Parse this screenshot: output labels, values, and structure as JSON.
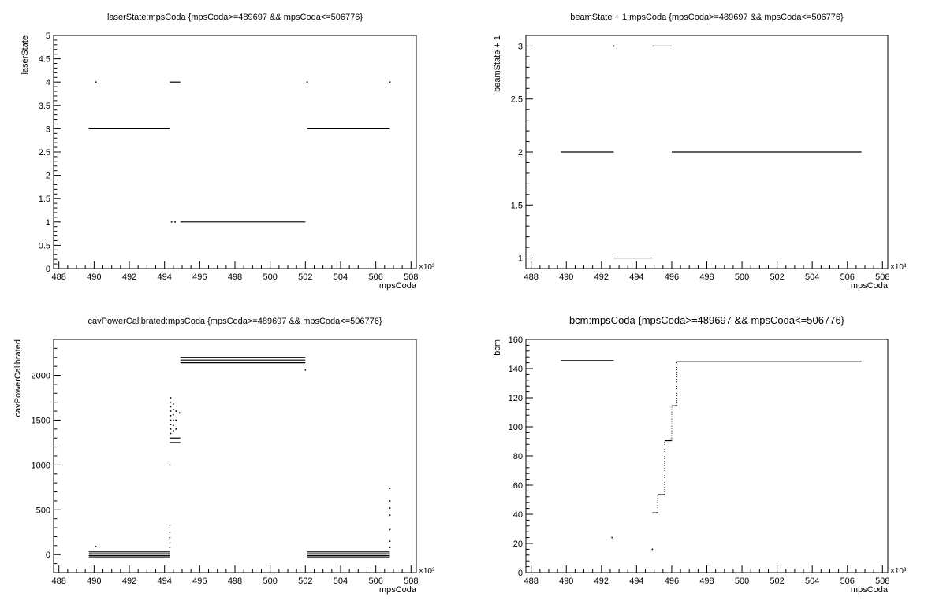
{
  "colors": {
    "background": "#ffffff",
    "axis": "#000000",
    "marker": "#000000"
  },
  "chart_data": [
    {
      "type": "scatter",
      "title": "laserState:mpsCoda {mpsCoda>=489697 && mpsCoda<=506776}",
      "xlabel": "mpsCoda",
      "ylabel": "laserState",
      "x_multiplier": "×10³",
      "xlim": [
        487.7,
        508.3
      ],
      "ylim": [
        0,
        5
      ],
      "x_ticks": [
        488,
        490,
        492,
        494,
        496,
        498,
        500,
        502,
        504,
        506,
        508
      ],
      "x_tick_labels": [
        "488",
        "490",
        "492",
        "494",
        "496",
        "498",
        "500",
        "502",
        "504",
        "506",
        "508"
      ],
      "y_ticks": [
        0,
        0.5,
        1,
        1.5,
        2,
        2.5,
        3,
        3.5,
        4,
        4.5,
        5
      ],
      "y_tick_labels": [
        "0",
        "0.5",
        "1",
        "1.5",
        "2",
        "2.5",
        "3",
        "3.5",
        "4",
        "4.5",
        "5"
      ],
      "grid": false,
      "segments": [
        {
          "x": [
            489.7,
            494.3
          ],
          "y": 3
        },
        {
          "x": [
            494.3,
            494.9
          ],
          "y": 4
        },
        {
          "x": [
            494.9,
            502.0
          ],
          "y": 1
        },
        {
          "x": [
            502.1,
            506.8
          ],
          "y": 3
        }
      ],
      "points": [
        {
          "x": 490.1,
          "y": 4
        },
        {
          "x": 502.1,
          "y": 4
        },
        {
          "x": 506.8,
          "y": 4
        },
        {
          "x": 494.4,
          "y": 1
        },
        {
          "x": 494.6,
          "y": 1
        }
      ]
    },
    {
      "type": "scatter",
      "title": "beamState + 1:mpsCoda {mpsCoda>=489697 && mpsCoda<=506776}",
      "xlabel": "mpsCoda",
      "ylabel": "beamState + 1",
      "x_multiplier": "×10³",
      "xlim": [
        487.7,
        508.3
      ],
      "ylim": [
        0.9,
        3.1
      ],
      "x_ticks": [
        488,
        490,
        492,
        494,
        496,
        498,
        500,
        502,
        504,
        506,
        508
      ],
      "x_tick_labels": [
        "488",
        "490",
        "492",
        "494",
        "496",
        "498",
        "500",
        "502",
        "504",
        "506",
        "508"
      ],
      "y_ticks": [
        1,
        1.5,
        2,
        2.5,
        3
      ],
      "y_tick_labels": [
        "1",
        "1.5",
        "2",
        "2.5",
        "3"
      ],
      "grid": false,
      "segments": [
        {
          "x": [
            489.7,
            492.7
          ],
          "y": 2
        },
        {
          "x": [
            492.7,
            494.9
          ],
          "y": 1
        },
        {
          "x": [
            494.9,
            496.0
          ],
          "y": 3
        },
        {
          "x": [
            496.0,
            506.8
          ],
          "y": 2
        }
      ],
      "points": [
        {
          "x": 492.7,
          "y": 3
        }
      ]
    },
    {
      "type": "scatter",
      "title": "cavPowerCalibrated:mpsCoda {mpsCoda>=489697 && mpsCoda<=506776}",
      "xlabel": "mpsCoda",
      "ylabel": "cavPowerCalibrated",
      "x_multiplier": "×10³",
      "xlim": [
        487.7,
        508.3
      ],
      "ylim": [
        -200,
        2400
      ],
      "x_ticks": [
        488,
        490,
        492,
        494,
        496,
        498,
        500,
        502,
        504,
        506,
        508
      ],
      "x_tick_labels": [
        "488",
        "490",
        "492",
        "494",
        "496",
        "498",
        "500",
        "502",
        "504",
        "506",
        "508"
      ],
      "y_ticks": [
        0,
        500,
        1000,
        1500,
        2000
      ],
      "y_tick_labels": [
        "0",
        "500",
        "1000",
        "1500",
        "2000"
      ],
      "grid": false,
      "segments": [
        {
          "x": [
            489.7,
            494.3
          ],
          "y": 30
        },
        {
          "x": [
            489.7,
            494.3
          ],
          "y": 10
        },
        {
          "x": [
            489.7,
            494.3
          ],
          "y": -10
        },
        {
          "x": [
            489.7,
            494.3
          ],
          "y": -25
        },
        {
          "x": [
            494.3,
            494.9
          ],
          "y": 1250
        },
        {
          "x": [
            494.3,
            494.9
          ],
          "y": 1300
        },
        {
          "x": [
            494.9,
            502.0
          ],
          "y": 2200
        },
        {
          "x": [
            494.9,
            502.0
          ],
          "y": 2170
        },
        {
          "x": [
            494.9,
            502.0
          ],
          "y": 2140
        },
        {
          "x": [
            502.1,
            506.8
          ],
          "y": 30
        },
        {
          "x": [
            502.1,
            506.8
          ],
          "y": 10
        },
        {
          "x": [
            502.1,
            506.8
          ],
          "y": -10
        },
        {
          "x": [
            502.1,
            506.8
          ],
          "y": -25
        }
      ],
      "points": [
        {
          "x": 490.1,
          "y": 90
        },
        {
          "x": 494.3,
          "y": 1000
        },
        {
          "x": 494.3,
          "y": 330
        },
        {
          "x": 494.3,
          "y": 250
        },
        {
          "x": 494.3,
          "y": 190
        },
        {
          "x": 494.3,
          "y": 130
        },
        {
          "x": 494.3,
          "y": 80
        },
        {
          "x": 494.35,
          "y": 1750
        },
        {
          "x": 494.35,
          "y": 1700
        },
        {
          "x": 494.35,
          "y": 1650
        },
        {
          "x": 494.35,
          "y": 1600
        },
        {
          "x": 494.35,
          "y": 1550
        },
        {
          "x": 494.35,
          "y": 1500
        },
        {
          "x": 494.35,
          "y": 1450
        },
        {
          "x": 494.35,
          "y": 1400
        },
        {
          "x": 494.35,
          "y": 1350
        },
        {
          "x": 494.5,
          "y": 1680
        },
        {
          "x": 494.5,
          "y": 1620
        },
        {
          "x": 494.5,
          "y": 1560
        },
        {
          "x": 494.5,
          "y": 1500
        },
        {
          "x": 494.5,
          "y": 1440
        },
        {
          "x": 494.5,
          "y": 1380
        },
        {
          "x": 494.65,
          "y": 1600
        },
        {
          "x": 494.65,
          "y": 1500
        },
        {
          "x": 494.65,
          "y": 1400
        },
        {
          "x": 494.85,
          "y": 1580
        },
        {
          "x": 502.0,
          "y": 2060
        },
        {
          "x": 506.8,
          "y": 740
        },
        {
          "x": 506.8,
          "y": 600
        },
        {
          "x": 506.8,
          "y": 520
        },
        {
          "x": 506.8,
          "y": 440
        },
        {
          "x": 506.8,
          "y": 280
        },
        {
          "x": 506.8,
          "y": 150
        },
        {
          "x": 506.8,
          "y": 80
        }
      ]
    },
    {
      "type": "scatter",
      "title": "bcm:mpsCoda {mpsCoda>=489697 && mpsCoda<=506776}",
      "xlabel": "mpsCoda",
      "ylabel": "bcm",
      "x_multiplier": "×10³",
      "xlim": [
        487.7,
        508.3
      ],
      "ylim": [
        0,
        160
      ],
      "x_ticks": [
        488,
        490,
        492,
        494,
        496,
        498,
        500,
        502,
        504,
        506,
        508
      ],
      "x_tick_labels": [
        "488",
        "490",
        "492",
        "494",
        "496",
        "498",
        "500",
        "502",
        "504",
        "506",
        "508"
      ],
      "y_ticks": [
        0,
        20,
        40,
        60,
        80,
        100,
        120,
        140,
        160
      ],
      "y_tick_labels": [
        "0",
        "20",
        "40",
        "60",
        "80",
        "100",
        "120",
        "140",
        "160"
      ],
      "grid": false,
      "segments": [
        {
          "x": [
            489.7,
            492.7
          ],
          "y": 145.5
        },
        {
          "x": [
            494.9,
            495.2
          ],
          "y": 41
        },
        {
          "x": [
            495.2,
            495.6
          ],
          "y": 53.5
        },
        {
          "x": [
            495.6,
            496.0
          ],
          "y": 90.5
        },
        {
          "x": [
            496.0,
            496.3
          ],
          "y": 114.5
        },
        {
          "x": [
            496.3,
            506.8
          ],
          "y": 145
        }
      ],
      "ramps": [
        {
          "x": 495.2,
          "y": [
            41,
            53.5
          ]
        },
        {
          "x": 495.6,
          "y": [
            53.5,
            90.5
          ]
        },
        {
          "x": 496.0,
          "y": [
            90.5,
            114.5
          ]
        },
        {
          "x": 496.3,
          "y": [
            114.5,
            145
          ]
        }
      ],
      "points": [
        {
          "x": 492.6,
          "y": 24
        },
        {
          "x": 494.9,
          "y": 16
        }
      ]
    }
  ]
}
